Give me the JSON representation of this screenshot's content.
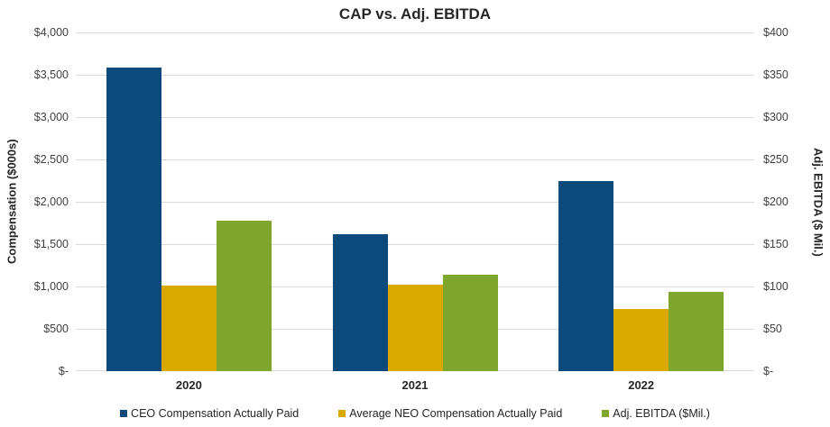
{
  "title": "CAP vs. Adj. EBITDA",
  "left_axis": {
    "title": "Compensation ($000s)",
    "ticks": [
      "$4,000",
      "$3,500",
      "$3,000",
      "$2,500",
      "$2,000",
      "$1,500",
      "$1,000",
      "$500",
      "$-"
    ]
  },
  "right_axis": {
    "title": "Adj. EBITDA ($ Mil.)",
    "ticks": [
      "$400",
      "$350",
      "$300",
      "$250",
      "$200",
      "$150",
      "$100",
      "$50",
      "$-"
    ]
  },
  "legend": [
    {
      "label": "CEO Compensation Actually Paid",
      "color": "#0d4a7c"
    },
    {
      "label": "Average NEO Compensation Actually Paid",
      "color": "#d9a900"
    },
    {
      "label": "Adj. EBITDA ($Mil.)",
      "color": "#7fa62c"
    }
  ],
  "colors": {
    "ceo_blue": "#0d4a7c",
    "neo_gold": "#d9a900",
    "ebitda_green": "#7fa62c",
    "gridline": "#d9d9d9",
    "text": "#262626"
  },
  "chart_data": {
    "type": "bar",
    "title": "CAP vs. Adj. EBITDA",
    "categories": [
      "2020",
      "2021",
      "2022"
    ],
    "series": [
      {
        "name": "CEO Compensation Actually Paid",
        "axis": "left",
        "color": "#0d4a7c",
        "values": [
          3580,
          1620,
          2250
        ]
      },
      {
        "name": "Average NEO Compensation Actually Paid",
        "axis": "left",
        "color": "#d9a900",
        "values": [
          1010,
          1020,
          735
        ]
      },
      {
        "name": "Adj. EBITDA ($Mil.)",
        "axis": "right",
        "color": "#7fa62c",
        "values": [
          178,
          114,
          94
        ]
      }
    ],
    "left_ylabel": "Compensation ($000s)",
    "right_ylabel": "Adj. EBITDA ($ Mil.)",
    "left_ylim": [
      0,
      4000
    ],
    "right_ylim": [
      0,
      400
    ],
    "left_tick_step": 500,
    "right_tick_step": 50,
    "grid": true,
    "legend_position": "bottom"
  }
}
